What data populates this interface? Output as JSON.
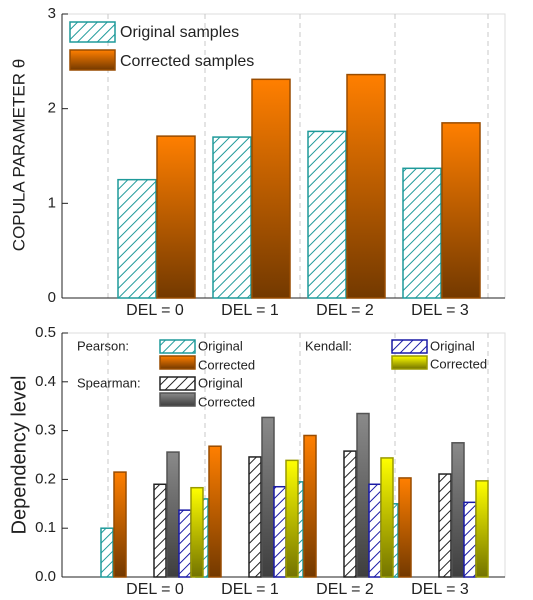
{
  "chart_data": [
    {
      "type": "bar",
      "ylabel": "COPULA PARAMETER θ",
      "categories": [
        "DEL = 0",
        "DEL = 1",
        "DEL = 2",
        "DEL = 3"
      ],
      "series": [
        {
          "name": "Original samples",
          "color": "#1f9a9a",
          "fill": "hatch",
          "values": [
            1.25,
            1.7,
            1.76,
            1.37
          ]
        },
        {
          "name": "Corrected samples",
          "color": "#ff7f00",
          "fill": "gradient",
          "values": [
            1.71,
            2.31,
            2.36,
            1.85
          ]
        }
      ],
      "ylim": [
        0,
        3
      ],
      "yticks": [
        0,
        1,
        2,
        3
      ],
      "grid": true
    },
    {
      "type": "bar",
      "ylabel": "Dependency level",
      "categories": [
        "DEL = 0",
        "DEL = 1",
        "DEL = 2",
        "DEL = 3"
      ],
      "groups": [
        "Pearson:",
        "Spearman:",
        "Kendall:"
      ],
      "series": [
        {
          "name": "Original",
          "group": 0,
          "color": "#1f9a9a",
          "fill": "hatch",
          "values": [
            0.1,
            0.16,
            0.195,
            0.15
          ]
        },
        {
          "name": "Corrected",
          "group": 0,
          "color": "#ff7f00",
          "fill": "gradient",
          "values": [
            0.215,
            0.268,
            0.29,
            0.203
          ]
        },
        {
          "name": "Original",
          "group": 1,
          "color": "#222222",
          "fill": "hatch",
          "values": [
            0.19,
            0.246,
            0.258,
            0.211
          ]
        },
        {
          "name": "Corrected",
          "group": 1,
          "color": "#8a8a8a",
          "fill": "gradient",
          "values": [
            0.256,
            0.327,
            0.335,
            0.275
          ]
        },
        {
          "name": "Original",
          "group": 2,
          "color": "#1a1aa6",
          "fill": "hatch",
          "values": [
            0.137,
            0.185,
            0.19,
            0.153
          ]
        },
        {
          "name": "Corrected",
          "group": 2,
          "color": "#ffff00",
          "fill": "gradient",
          "values": [
            0.183,
            0.239,
            0.244,
            0.197
          ]
        }
      ],
      "ylim": [
        0,
        0.5
      ],
      "yticks": [
        {
          "value": 0,
          "label": "0.0"
        },
        0.1,
        0.2,
        0.3,
        0.4,
        0.5
      ],
      "grid": true
    }
  ]
}
